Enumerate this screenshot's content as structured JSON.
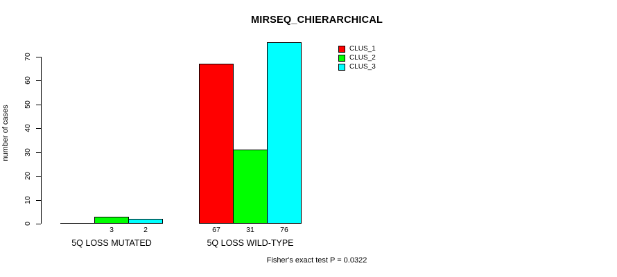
{
  "chart_data": {
    "type": "bar",
    "title": "MIRSEQ_CHIERARCHICAL",
    "xlabel": "",
    "ylabel": "number of cases",
    "categories": [
      "5Q LOSS MUTATED",
      "5Q LOSS WILD-TYPE"
    ],
    "series": [
      {
        "name": "CLUS_1",
        "color": "#ff0000",
        "values": [
          0,
          67
        ]
      },
      {
        "name": "CLUS_2",
        "color": "#00ff00",
        "values": [
          3,
          31
        ]
      },
      {
        "name": "CLUS_3",
        "color": "#00ffff",
        "values": [
          2,
          76
        ]
      }
    ],
    "bar_value_labels": [
      [
        "",
        "3",
        "2"
      ],
      [
        "67",
        "31",
        "76"
      ]
    ],
    "yticks": [
      0,
      10,
      20,
      30,
      40,
      50,
      60,
      70
    ],
    "ylim": [
      0,
      76
    ],
    "grid": false,
    "legend_position": "top-right",
    "annotation": "Fisher's exact test P = 0.0322",
    "bar_border_color": "#000000",
    "background_color": "#ffffff"
  }
}
